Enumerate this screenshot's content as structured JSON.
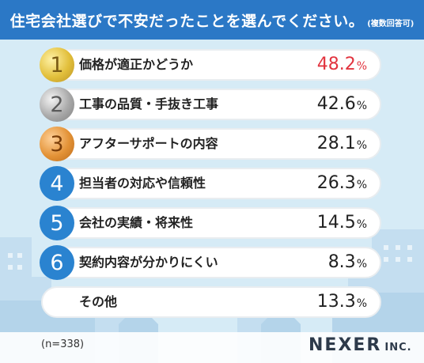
{
  "title": "住宅会社選びで不安だったことを選んでください。",
  "title_note": "(複数回答可)",
  "n_label": "(n=338)",
  "brand": {
    "name": "NEXER",
    "suffix": "INC."
  },
  "colors": {
    "title_bg": "#2b78c6",
    "highlight": "#e2343f",
    "badge_blue": "#2a83d0"
  },
  "chart_data": {
    "type": "bar",
    "title": "住宅会社選びで不安だったことを選んでください。",
    "unit": "%",
    "categories": [
      "価格が適正かどうか",
      "工事の品質・手抜き工事",
      "アフターサポートの内容",
      "担当者の対応や信頼性",
      "会社の実績・将来性",
      "契約内容が分かりにくい",
      "その他"
    ],
    "ranks": [
      "1",
      "2",
      "3",
      "4",
      "5",
      "6",
      ""
    ],
    "values": [
      "48.2",
      "42.6",
      "28.1",
      "26.3",
      "14.5",
      "8.3",
      "13.3"
    ]
  }
}
